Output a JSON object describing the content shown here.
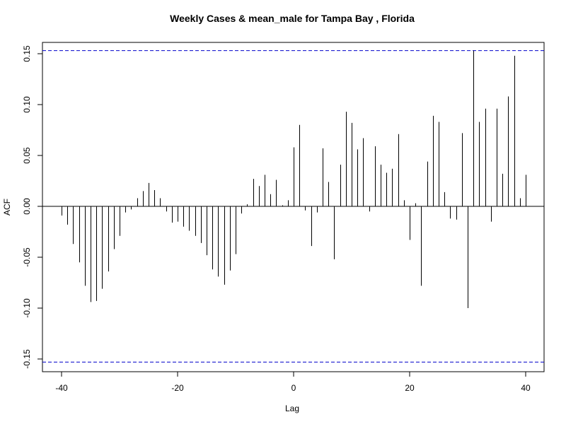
{
  "chart_data": {
    "type": "bar",
    "title": "Weekly Cases & mean_male for Tampa Bay , Florida",
    "xlabel": "Lag",
    "ylabel": "ACF",
    "xlim": [
      -40,
      40
    ],
    "ylim": [
      -0.165,
      0.16
    ],
    "x_ticks": [
      -40,
      -20,
      0,
      20,
      40
    ],
    "y_ticks": [
      -0.15,
      -0.1,
      -0.05,
      0.0,
      0.05,
      0.1,
      0.15
    ],
    "y_tick_labels": [
      "-0.15",
      "-0.10",
      "-0.05",
      "0.00",
      "0.05",
      "0.10",
      "0.15"
    ],
    "confidence_bounds": [
      0.153,
      -0.153
    ],
    "confidence_line_color": "#0000cc",
    "grid": false,
    "lags": [
      -40,
      -39,
      -38,
      -37,
      -36,
      -35,
      -34,
      -33,
      -32,
      -31,
      -30,
      -29,
      -28,
      -27,
      -26,
      -25,
      -24,
      -23,
      -22,
      -21,
      -20,
      -19,
      -18,
      -17,
      -16,
      -15,
      -14,
      -13,
      -12,
      -11,
      -10,
      -9,
      -8,
      -7,
      -6,
      -5,
      -4,
      -3,
      -2,
      -1,
      0,
      1,
      2,
      3,
      4,
      5,
      6,
      7,
      8,
      9,
      10,
      11,
      12,
      13,
      14,
      15,
      16,
      17,
      18,
      19,
      20,
      21,
      22,
      23,
      24,
      25,
      26,
      27,
      28,
      29,
      30,
      31,
      32,
      33,
      34,
      35,
      36,
      37,
      38,
      39,
      40
    ],
    "acf": [
      -0.009,
      -0.018,
      -0.037,
      -0.055,
      -0.078,
      -0.094,
      -0.093,
      -0.081,
      -0.064,
      -0.042,
      -0.029,
      -0.006,
      -0.003,
      0.008,
      0.015,
      0.023,
      0.016,
      0.008,
      -0.005,
      -0.016,
      -0.015,
      -0.02,
      -0.024,
      -0.029,
      -0.036,
      -0.048,
      -0.062,
      -0.069,
      -0.077,
      -0.063,
      -0.047,
      -0.007,
      0.002,
      0.027,
      0.02,
      0.031,
      0.012,
      0.026,
      0.001,
      0.006,
      0.058,
      0.08,
      -0.004,
      -0.039,
      -0.006,
      0.057,
      0.024,
      -0.052,
      0.041,
      0.093,
      0.082,
      0.056,
      0.067,
      -0.005,
      0.059,
      0.041,
      0.033,
      0.037,
      0.071,
      0.006,
      -0.033,
      0.003,
      -0.078,
      0.044,
      0.089,
      0.083,
      0.014,
      -0.012,
      -0.013,
      0.072,
      -0.1,
      0.153,
      0.083,
      0.096,
      -0.015,
      0.096,
      0.032,
      0.108,
      0.148,
      0.008,
      0.031
    ]
  }
}
